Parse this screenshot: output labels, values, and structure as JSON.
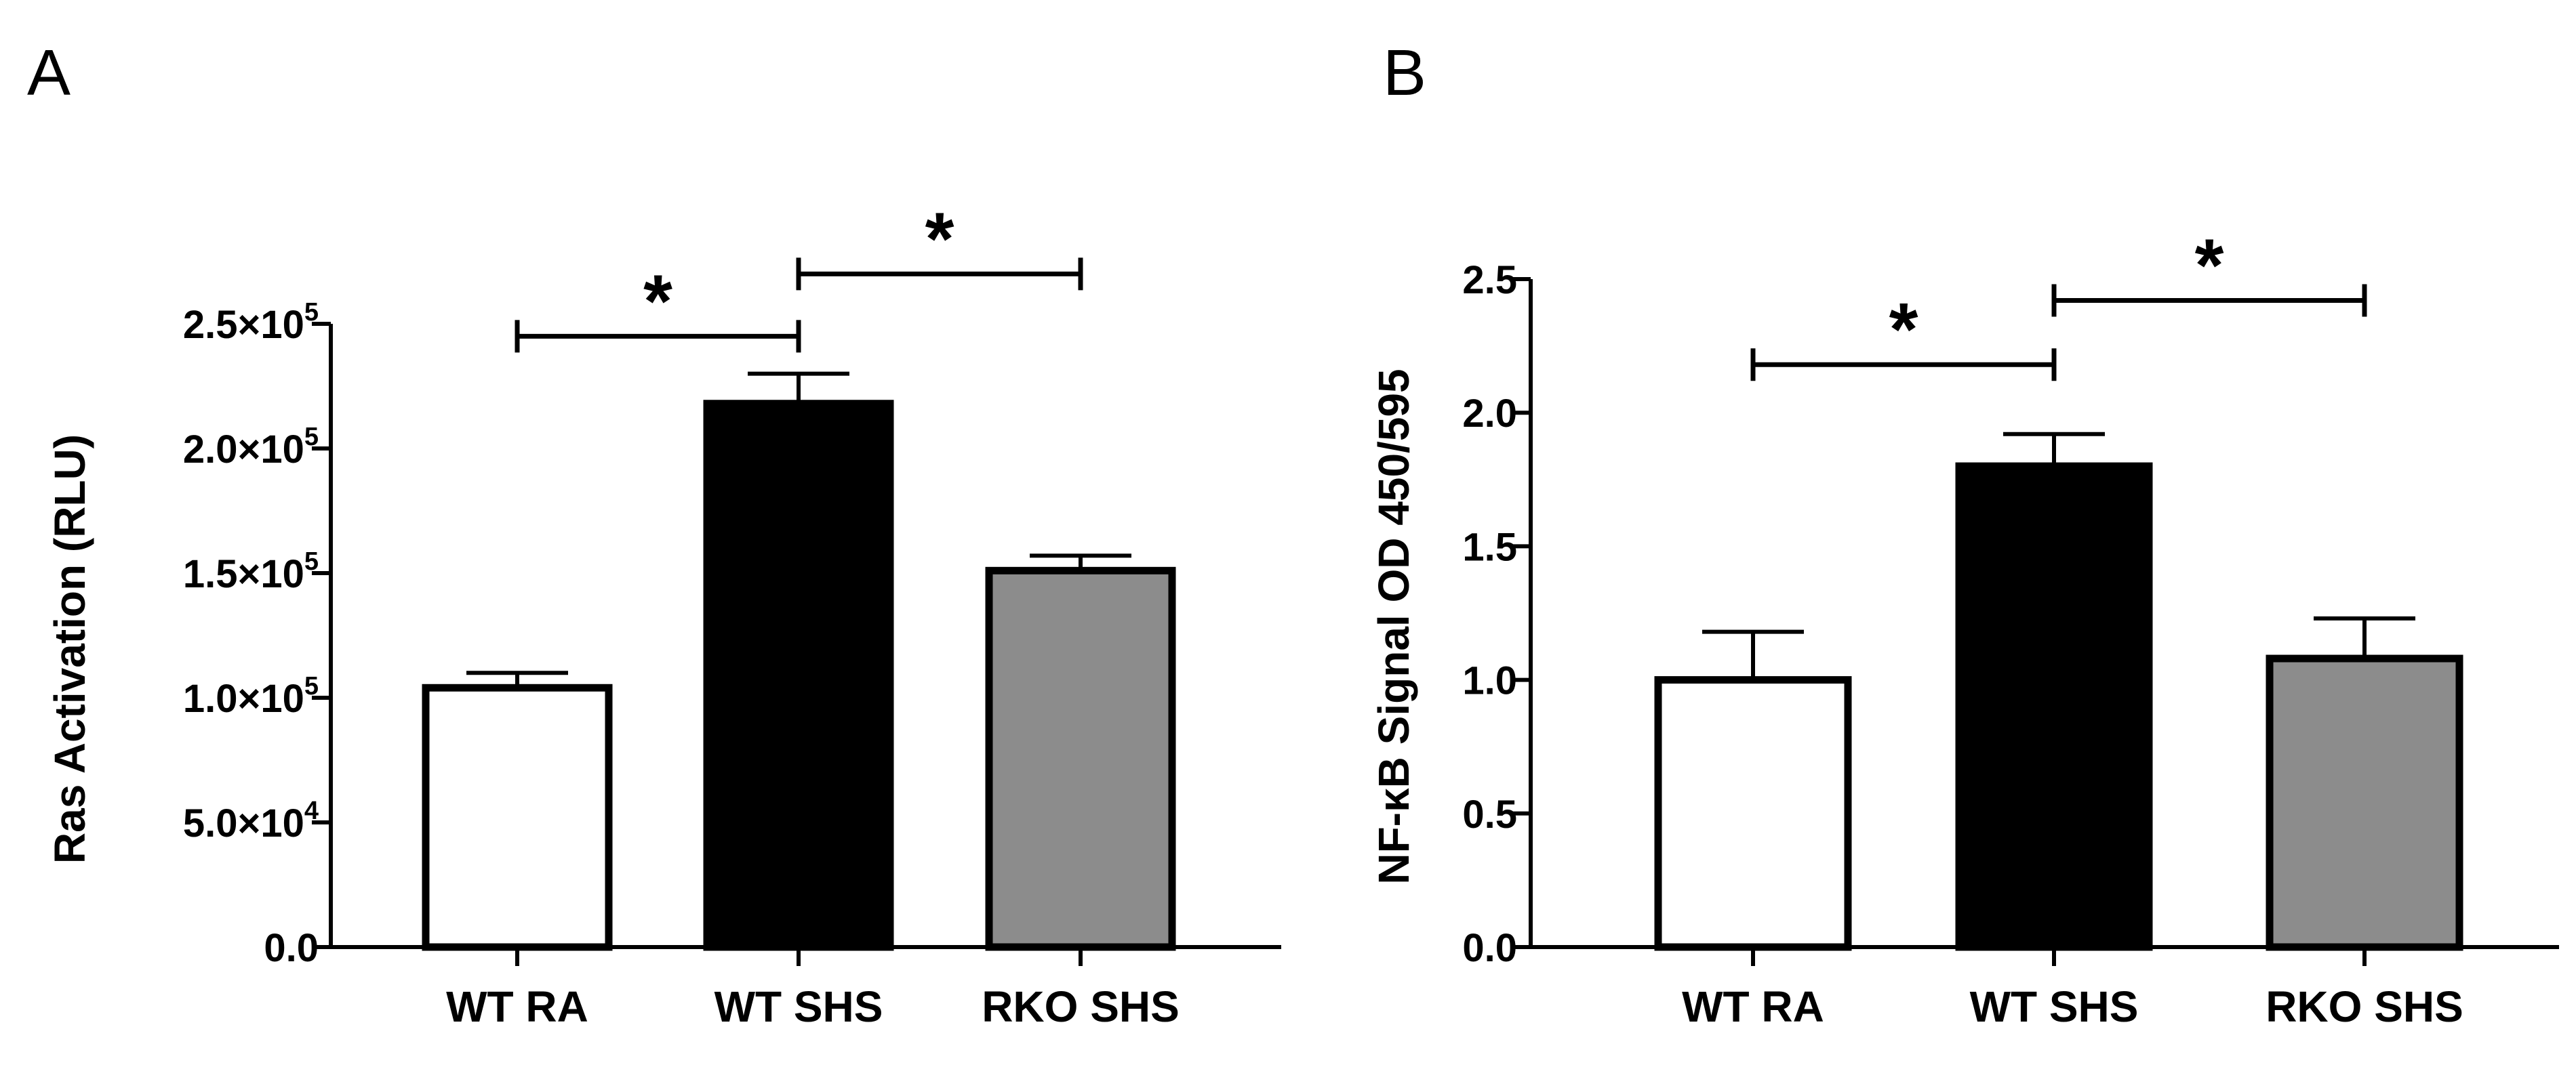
{
  "chart_data": [
    {
      "panel": "A",
      "type": "bar",
      "categories": [
        "WT RA",
        "WT SHS",
        "RKO SHS"
      ],
      "values": [
        104000,
        218000,
        151000
      ],
      "errors": [
        6000,
        12000,
        6000
      ],
      "fills": [
        "#ffffff",
        "#000000",
        "#8c8c8c"
      ],
      "ylabel": "Ras Activation (RLU)",
      "ylim": [
        0,
        250000
      ],
      "yticks": [
        {
          "value": 0,
          "mantissa": "0.0",
          "exp": ""
        },
        {
          "value": 50000,
          "mantissa": "5.0×10",
          "exp": "4"
        },
        {
          "value": 100000,
          "mantissa": "1.0×10",
          "exp": "5"
        },
        {
          "value": 150000,
          "mantissa": "1.5×10",
          "exp": "5"
        },
        {
          "value": 200000,
          "mantissa": "2.0×10",
          "exp": "5"
        },
        {
          "value": 250000,
          "mantissa": "2.5×10",
          "exp": "5"
        }
      ],
      "significance": [
        {
          "from": 0,
          "to": 1,
          "label": "*",
          "level": 245000
        },
        {
          "from": 1,
          "to": 2,
          "label": "*",
          "level": 270000
        }
      ]
    },
    {
      "panel": "B",
      "type": "bar",
      "categories": [
        "WT RA",
        "WT SHS",
        "RKO SHS"
      ],
      "values": [
        1.0,
        1.8,
        1.08
      ],
      "errors": [
        0.18,
        0.12,
        0.15
      ],
      "fills": [
        "#ffffff",
        "#000000",
        "#8c8c8c"
      ],
      "ylabel": "NF-κB Signal OD 450/595",
      "ylim": [
        0,
        2.5
      ],
      "yticks": [
        {
          "value": 0.0,
          "mantissa": "0.0",
          "exp": ""
        },
        {
          "value": 0.5,
          "mantissa": "0.5",
          "exp": ""
        },
        {
          "value": 1.0,
          "mantissa": "1.0",
          "exp": ""
        },
        {
          "value": 1.5,
          "mantissa": "1.5",
          "exp": ""
        },
        {
          "value": 2.0,
          "mantissa": "2.0",
          "exp": ""
        },
        {
          "value": 2.5,
          "mantissa": "2.5",
          "exp": ""
        }
      ],
      "significance": [
        {
          "from": 0,
          "to": 1,
          "label": "*",
          "level": 2.18
        },
        {
          "from": 1,
          "to": 2,
          "label": "*",
          "level": 2.42
        }
      ]
    }
  ]
}
